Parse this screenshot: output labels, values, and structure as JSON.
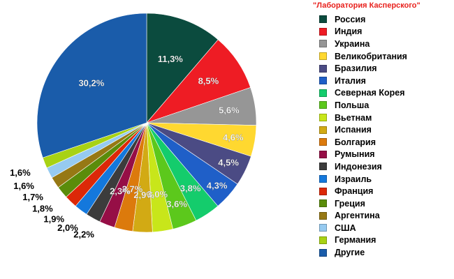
{
  "chart_data": {
    "type": "pie",
    "title": "",
    "source_label": "\"Лаборатория Касперского\"",
    "legend_placement": "right",
    "unit": "%",
    "slices": [
      {
        "name": "Россия",
        "value": 11.3,
        "label": "11,3%",
        "color": "#0b4b3e"
      },
      {
        "name": "Индия",
        "value": 8.5,
        "label": "8,5%",
        "color": "#ee1c24"
      },
      {
        "name": "Украина",
        "value": 5.6,
        "label": "5,6%",
        "color": "#969696"
      },
      {
        "name": "Великобритания",
        "value": 4.6,
        "label": "4,6%",
        "color": "#ffd830"
      },
      {
        "name": "Бразилия",
        "value": 4.5,
        "label": "4,5%",
        "color": "#4b4b84"
      },
      {
        "name": "Италия",
        "value": 4.3,
        "label": "4,3%",
        "color": "#1f5fc8"
      },
      {
        "name": "Северная Корея",
        "value": 3.8,
        "label": "3,8%",
        "color": "#14cc6c"
      },
      {
        "name": "Польша",
        "value": 3.6,
        "label": "3,6%",
        "color": "#5cc81c"
      },
      {
        "name": "Вьетнам",
        "value": 3.0,
        "label": "3,0%",
        "color": "#c8e61a"
      },
      {
        "name": "Испания",
        "value": 2.9,
        "label": "2,9%",
        "color": "#d2aa14"
      },
      {
        "name": "Болгария",
        "value": 2.7,
        "label": "2,7%",
        "color": "#dc7a0c"
      },
      {
        "name": "Румыния",
        "value": 2.3,
        "label": "2,3%",
        "color": "#960e46"
      },
      {
        "name": "Индонезия",
        "value": 2.2,
        "label": "2,2%",
        "color": "#3c3c3c"
      },
      {
        "name": "Израиль",
        "value": 2.0,
        "label": "2,0%",
        "color": "#1478dc"
      },
      {
        "name": "Франция",
        "value": 1.9,
        "label": "1,9%",
        "color": "#dc2808"
      },
      {
        "name": "Греция",
        "value": 1.8,
        "label": "1,8%",
        "color": "#5a8c0a"
      },
      {
        "name": "Аргентина",
        "value": 1.7,
        "label": "1,7%",
        "color": "#967814"
      },
      {
        "name": "США",
        "value": 1.6,
        "label": "1,6%",
        "color": "#96caf0"
      },
      {
        "name": "Германия",
        "value": 1.6,
        "label": "1,6%",
        "color": "#a8d214"
      },
      {
        "name": "Другие",
        "value": 30.2,
        "label": "30,2%",
        "color": "#1a5caa"
      }
    ]
  }
}
